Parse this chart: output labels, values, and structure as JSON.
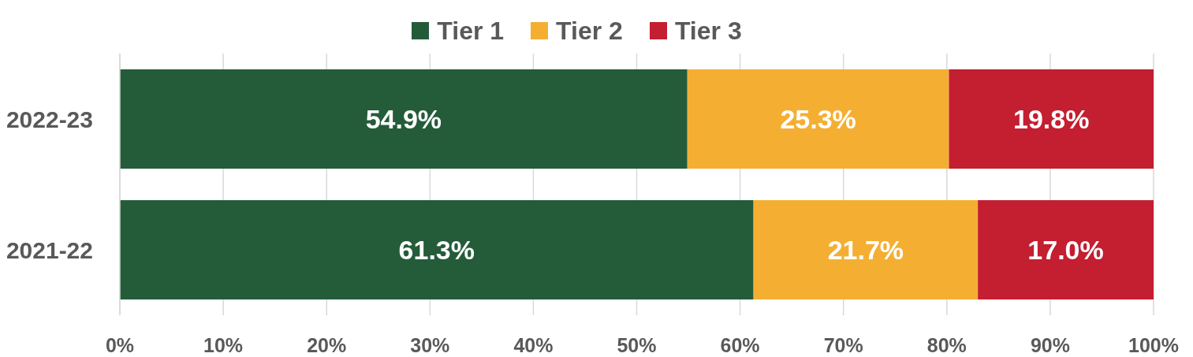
{
  "chart_data": {
    "type": "bar",
    "orientation": "horizontal",
    "stacked": true,
    "categories": [
      "2022-23",
      "2021-22"
    ],
    "series": [
      {
        "name": "Tier 1",
        "color": "#245c3a",
        "values": [
          54.9,
          61.3
        ],
        "value_labels": [
          "54.9%",
          "61.3%"
        ]
      },
      {
        "name": "Tier 2",
        "color": "#f4af33",
        "values": [
          25.3,
          21.7
        ],
        "value_labels": [
          "25.3%",
          "21.7%"
        ]
      },
      {
        "name": "Tier 3",
        "color": "#c41e31",
        "values": [
          19.8,
          17.0
        ],
        "value_labels": [
          "19.8%",
          "17.0%"
        ]
      }
    ],
    "xlim": [
      0,
      100
    ],
    "xticks": [
      {
        "value": 0,
        "label": "0%"
      },
      {
        "value": 10,
        "label": "10%"
      },
      {
        "value": 20,
        "label": "20%"
      },
      {
        "value": 30,
        "label": "30%"
      },
      {
        "value": 40,
        "label": "40%"
      },
      {
        "value": 50,
        "label": "50%"
      },
      {
        "value": 60,
        "label": "60%"
      },
      {
        "value": 70,
        "label": "70%"
      },
      {
        "value": 80,
        "label": "80%"
      },
      {
        "value": 90,
        "label": "90%"
      },
      {
        "value": 100,
        "label": "100%"
      }
    ],
    "grid": "x",
    "legend": "top"
  }
}
